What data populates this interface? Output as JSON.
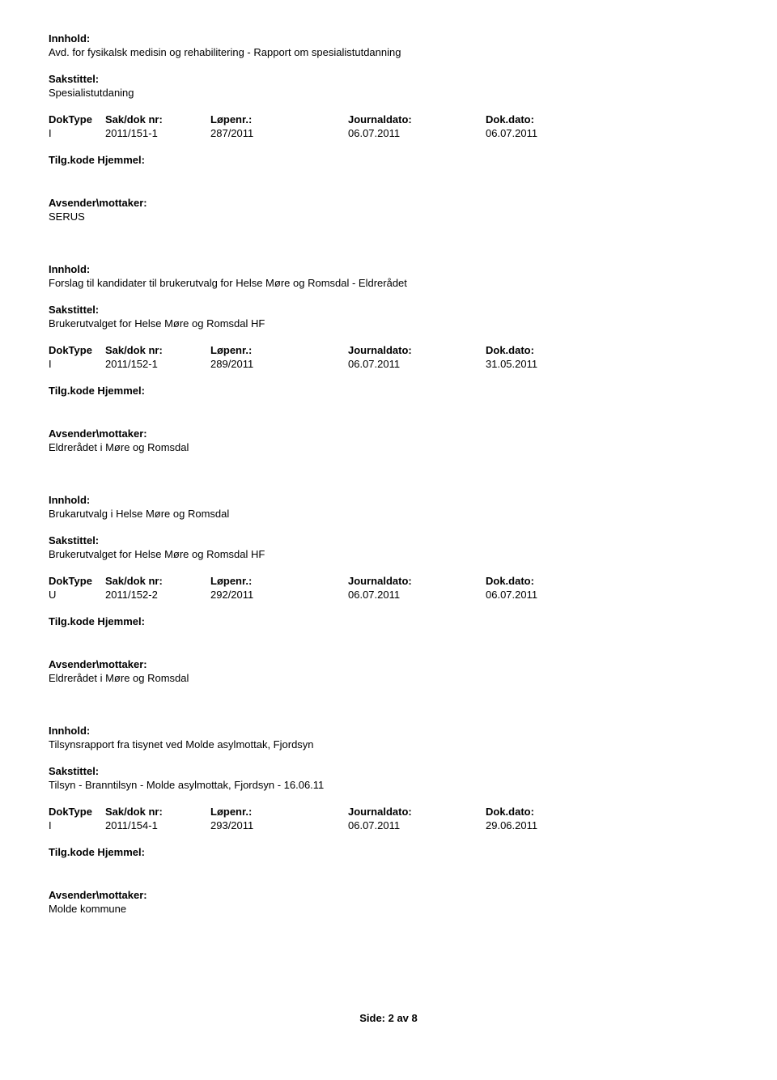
{
  "labels": {
    "innhold": "Innhold:",
    "sakstittel": "Sakstittel:",
    "doktype": "DokType",
    "sakdok": "Sak/dok nr:",
    "lopenr": "Løpenr.:",
    "journaldato": "Journaldato:",
    "dokdato": "Dok.dato:",
    "tilgkode": "Tilg.kode Hjemmel:",
    "avsender": "Avsender\\mottaker:"
  },
  "records": [
    {
      "innhold": "Avd. for fysikalsk medisin og rehabilitering - Rapport om spesialistutdanning",
      "sakstittel": "Spesialistutdaning",
      "doktype": "I",
      "sakdok": "2011/151-1",
      "lopenr": "287/2011",
      "journaldato": "06.07.2011",
      "dokdato": "06.07.2011",
      "avsender": "SERUS"
    },
    {
      "innhold": "Forslag til kandidater til brukerutvalg for Helse Møre og Romsdal - Eldrerådet",
      "sakstittel": "Brukerutvalget for Helse Møre og Romsdal HF",
      "doktype": "I",
      "sakdok": "2011/152-1",
      "lopenr": "289/2011",
      "journaldato": "06.07.2011",
      "dokdato": "31.05.2011",
      "avsender": "Eldrerådet i Møre og Romsdal"
    },
    {
      "innhold": "Brukarutvalg i Helse Møre og Romsdal",
      "sakstittel": "Brukerutvalget for Helse Møre og Romsdal HF",
      "doktype": "U",
      "sakdok": "2011/152-2",
      "lopenr": "292/2011",
      "journaldato": "06.07.2011",
      "dokdato": "06.07.2011",
      "avsender": "Eldrerådet i Møre og Romsdal"
    },
    {
      "innhold": "Tilsynsrapport fra tisynet ved Molde asylmottak, Fjordsyn",
      "sakstittel": "Tilsyn - Branntilsyn - Molde asylmottak, Fjordsyn - 16.06.11",
      "doktype": "I",
      "sakdok": "2011/154-1",
      "lopenr": "293/2011",
      "journaldato": "06.07.2011",
      "dokdato": "29.06.2011",
      "avsender": "Molde kommune"
    }
  ],
  "footer": "Side:  2 av  8"
}
